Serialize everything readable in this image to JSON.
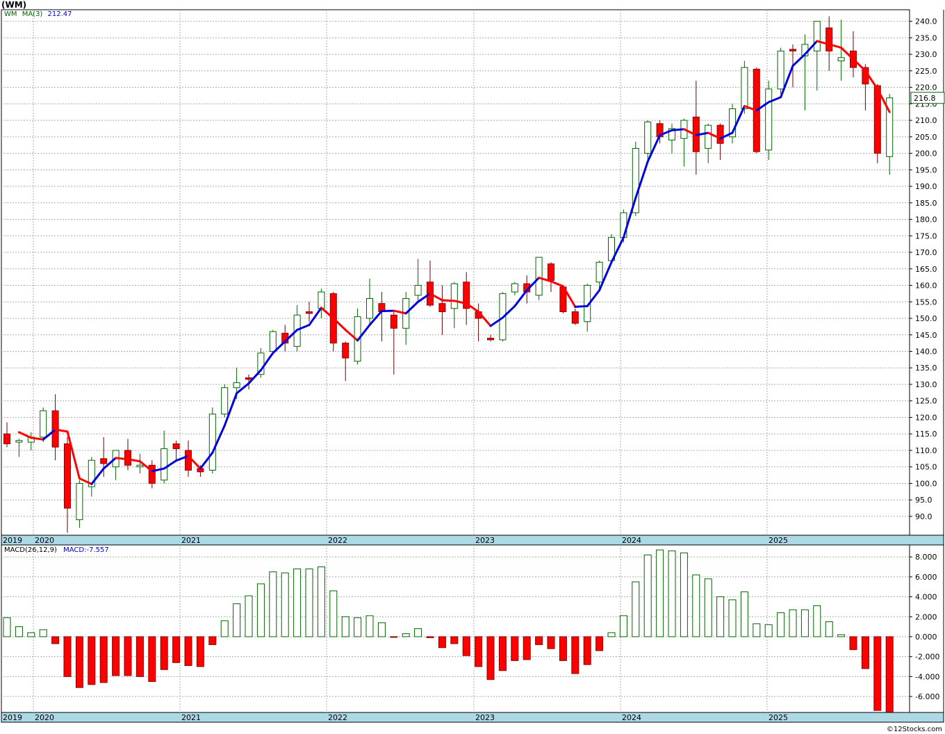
{
  "chart_title": "(WM)",
  "price_legend": {
    "symbol": "WM",
    "ma_label": "MA(3)",
    "ma_value": "212.47"
  },
  "macd_legend": {
    "label": "MACD(26,12,9)",
    "value": "MACD:-7.557"
  },
  "last_price_label": "216.8",
  "copyright": "©12Stocks.com",
  "colors": {
    "up": "#006400",
    "down": "#ff0000",
    "ma_up": "#0000dd",
    "ma_down": "#ff0000",
    "axis_band": "#add8e6"
  },
  "chart_data": [
    {
      "type": "candlestick",
      "title": "",
      "x_ticks": [
        "2019",
        "2020",
        "2021",
        "2022",
        "2023",
        "2024",
        "2025"
      ],
      "y_ticks": [
        90,
        95,
        100,
        105,
        110,
        115,
        120,
        125,
        130,
        135,
        140,
        145,
        150,
        155,
        160,
        165,
        170,
        175,
        180,
        185,
        190,
        195,
        200,
        205,
        210,
        215,
        220,
        225,
        230,
        235,
        240
      ],
      "y_tick_labels": [
        "90.0",
        "95.0",
        "100.0",
        "105.0",
        "110.0",
        "115.0",
        "120.0",
        "125.0",
        "130.0",
        "135.0",
        "140.0",
        "145.0",
        "150.0",
        "155.0",
        "160.0",
        "165.0",
        "170.0",
        "175.0",
        "180.0",
        "185.0",
        "190.0",
        "195.0",
        "200.0",
        "205.0",
        "210.0",
        "215.0",
        "220.0",
        "225.0",
        "230.0",
        "235.0",
        "240.0"
      ],
      "ylim": [
        84.3,
        243.5
      ],
      "candles": [
        {
          "o": 115,
          "h": 118.5,
          "l": 111,
          "c": 112
        },
        {
          "o": 112.5,
          "h": 113.5,
          "l": 108,
          "c": 113
        },
        {
          "o": 112.5,
          "h": 115.5,
          "l": 110,
          "c": 114
        },
        {
          "o": 114,
          "h": 123,
          "l": 112.5,
          "c": 122
        },
        {
          "o": 122,
          "h": 127,
          "l": 107,
          "c": 111
        },
        {
          "o": 112,
          "h": 114,
          "l": 85,
          "c": 92.5
        },
        {
          "o": 89,
          "h": 101,
          "l": 86.5,
          "c": 100
        },
        {
          "o": 99,
          "h": 108,
          "l": 96,
          "c": 107
        },
        {
          "o": 107.5,
          "h": 114,
          "l": 102,
          "c": 106
        },
        {
          "o": 105,
          "h": 110,
          "l": 101,
          "c": 110
        },
        {
          "o": 110,
          "h": 113.5,
          "l": 104,
          "c": 105.5
        },
        {
          "o": 105,
          "h": 109,
          "l": 103,
          "c": 105.5
        },
        {
          "o": 105.5,
          "h": 107,
          "l": 98.5,
          "c": 100
        },
        {
          "o": 101,
          "h": 116,
          "l": 100,
          "c": 110.5
        },
        {
          "o": 112,
          "h": 113,
          "l": 107,
          "c": 110.5
        },
        {
          "o": 110,
          "h": 113,
          "l": 102,
          "c": 104
        },
        {
          "o": 104.5,
          "h": 105.5,
          "l": 102,
          "c": 103.5
        },
        {
          "o": 104,
          "h": 123,
          "l": 103,
          "c": 121
        },
        {
          "o": 121,
          "h": 130,
          "l": 120,
          "c": 129
        },
        {
          "o": 129,
          "h": 135,
          "l": 125.5,
          "c": 130.5
        },
        {
          "o": 132,
          "h": 133,
          "l": 128.5,
          "c": 131.5
        },
        {
          "o": 133,
          "h": 141,
          "l": 132,
          "c": 139.5
        },
        {
          "o": 140,
          "h": 146.5,
          "l": 139,
          "c": 146
        },
        {
          "o": 145.5,
          "h": 148,
          "l": 140,
          "c": 142.5
        },
        {
          "o": 141.5,
          "h": 154,
          "l": 140,
          "c": 151
        },
        {
          "o": 152,
          "h": 155,
          "l": 149,
          "c": 151.5
        },
        {
          "o": 153,
          "h": 159,
          "l": 150,
          "c": 158
        },
        {
          "o": 157.5,
          "h": 158,
          "l": 140,
          "c": 142.5
        },
        {
          "o": 142.5,
          "h": 143,
          "l": 131,
          "c": 138
        },
        {
          "o": 137,
          "h": 153,
          "l": 136,
          "c": 150.5
        },
        {
          "o": 150,
          "h": 162,
          "l": 148,
          "c": 156
        },
        {
          "o": 154.5,
          "h": 158,
          "l": 143,
          "c": 152
        },
        {
          "o": 151,
          "h": 152,
          "l": 133,
          "c": 147
        },
        {
          "o": 147,
          "h": 158,
          "l": 142,
          "c": 156
        },
        {
          "o": 157,
          "h": 168,
          "l": 155,
          "c": 160
        },
        {
          "o": 161,
          "h": 167.5,
          "l": 153.5,
          "c": 154
        },
        {
          "o": 154.5,
          "h": 160,
          "l": 145,
          "c": 152
        },
        {
          "o": 153,
          "h": 161,
          "l": 147,
          "c": 160.5
        },
        {
          "o": 161,
          "h": 164,
          "l": 148,
          "c": 153
        },
        {
          "o": 152,
          "h": 154.5,
          "l": 143,
          "c": 150
        },
        {
          "o": 144,
          "h": 145,
          "l": 143,
          "c": 143.5
        },
        {
          "o": 143.5,
          "h": 158,
          "l": 143,
          "c": 157.5
        },
        {
          "o": 158,
          "h": 161,
          "l": 157,
          "c": 160.5
        },
        {
          "o": 160.5,
          "h": 163,
          "l": 154.5,
          "c": 158
        },
        {
          "o": 157,
          "h": 168.5,
          "l": 155.5,
          "c": 168.5
        },
        {
          "o": 166.5,
          "h": 167,
          "l": 158,
          "c": 161.5
        },
        {
          "o": 159.5,
          "h": 160,
          "l": 151.5,
          "c": 152
        },
        {
          "o": 152,
          "h": 153,
          "l": 148,
          "c": 148.5
        },
        {
          "o": 149,
          "h": 160.5,
          "l": 146,
          "c": 160
        },
        {
          "o": 161,
          "h": 167.5,
          "l": 159,
          "c": 167
        },
        {
          "o": 167.5,
          "h": 175.5,
          "l": 166.5,
          "c": 174.5
        },
        {
          "o": 174.5,
          "h": 183,
          "l": 173,
          "c": 182
        },
        {
          "o": 182,
          "h": 203.5,
          "l": 181,
          "c": 201.5
        },
        {
          "o": 200,
          "h": 210,
          "l": 198,
          "c": 209.5
        },
        {
          "o": 209,
          "h": 210,
          "l": 203,
          "c": 205
        },
        {
          "o": 204,
          "h": 209,
          "l": 200,
          "c": 207.5
        },
        {
          "o": 204.5,
          "h": 210.5,
          "l": 196,
          "c": 210
        },
        {
          "o": 211,
          "h": 222,
          "l": 193.5,
          "c": 200.5
        },
        {
          "o": 201.5,
          "h": 209,
          "l": 197,
          "c": 208.5
        },
        {
          "o": 208.5,
          "h": 209,
          "l": 198,
          "c": 203
        },
        {
          "o": 205,
          "h": 215,
          "l": 203,
          "c": 213.5
        },
        {
          "o": 213.5,
          "h": 228,
          "l": 212,
          "c": 226
        },
        {
          "o": 225.5,
          "h": 226,
          "l": 200,
          "c": 200.5
        },
        {
          "o": 201,
          "h": 222,
          "l": 198,
          "c": 219.5
        },
        {
          "o": 219.5,
          "h": 232,
          "l": 218,
          "c": 231
        },
        {
          "o": 231.5,
          "h": 233,
          "l": 220,
          "c": 231
        },
        {
          "o": 229.5,
          "h": 236,
          "l": 213,
          "c": 233
        },
        {
          "o": 231,
          "h": 240,
          "l": 219,
          "c": 240
        },
        {
          "o": 238,
          "h": 241.5,
          "l": 225,
          "c": 231
        },
        {
          "o": 228,
          "h": 240.5,
          "l": 222,
          "c": 229
        },
        {
          "o": 231,
          "h": 237,
          "l": 223,
          "c": 226
        },
        {
          "o": 226,
          "h": 227,
          "l": 213,
          "c": 221
        },
        {
          "o": 220.5,
          "h": 221,
          "l": 197,
          "c": 200
        },
        {
          "o": 199,
          "h": 218,
          "l": 193.5,
          "c": 216.8
        }
      ],
      "ma_series": {
        "name": "MA(3)",
        "values": [
          115.5,
          113.8,
          113.3,
          116.3,
          115.7,
          101.5,
          99.8,
          104.5,
          107.7,
          107.3,
          106.7,
          103.7,
          104.5,
          106.9,
          108.3,
          104.5,
          109.3,
          117.5,
          127.3,
          130.3,
          134.3,
          139.5,
          143.0,
          146.5,
          148.0,
          153.2,
          150.0,
          146.5,
          143.3,
          148.0,
          152.2,
          152.3,
          151.5,
          155.0,
          157.5,
          155.5,
          155.3,
          154.5,
          152.0,
          147.7,
          150.2,
          153.7,
          158.5,
          162.3,
          161.2,
          159.7,
          153.5,
          153.7,
          158.5,
          167.0,
          174.5,
          186.5,
          197.5,
          205.5,
          207.0,
          207.3,
          205.5,
          206.2,
          204.5,
          206.2,
          214.3,
          213.0,
          215.5,
          217.0,
          226.5,
          230.0,
          234.0,
          233.0,
          232.0,
          228.5,
          225.0,
          219.5,
          212.5
        ]
      },
      "last_price": 216.8
    },
    {
      "type": "bar",
      "title": "",
      "series_name": "MACD(26,12,9)",
      "x_ticks": [
        "2019",
        "2020",
        "2021",
        "2022",
        "2023",
        "2024",
        "2025"
      ],
      "y_ticks": [
        -6,
        -4,
        -2,
        0,
        2,
        4,
        6,
        8
      ],
      "y_tick_labels": [
        "-6.000",
        "-4.000",
        "-2.000",
        "0.000",
        "2.000",
        "4.000",
        "6.000",
        "8.000"
      ],
      "ylim": [
        -7.6,
        9.2
      ],
      "values": [
        1.9,
        1.0,
        0.4,
        0.7,
        -0.7,
        -4.0,
        -5.1,
        -4.8,
        -4.6,
        -3.9,
        -3.9,
        -4.0,
        -4.5,
        -3.3,
        -2.6,
        -2.9,
        -3.0,
        -0.8,
        1.6,
        3.3,
        4.1,
        5.3,
        6.5,
        6.4,
        6.8,
        6.8,
        7.0,
        4.6,
        2.0,
        1.9,
        2.1,
        1.4,
        -0.05,
        0.3,
        0.8,
        -0.1,
        -1.1,
        -0.7,
        -1.9,
        -3.0,
        -4.3,
        -3.4,
        -2.4,
        -2.3,
        -0.8,
        -1.2,
        -2.4,
        -3.7,
        -2.8,
        -1.4,
        0.4,
        2.1,
        5.5,
        8.2,
        8.7,
        8.6,
        8.4,
        6.2,
        5.8,
        4.0,
        3.7,
        4.5,
        1.3,
        1.2,
        2.4,
        2.7,
        2.7,
        3.1,
        1.5,
        0.2,
        -1.3,
        -3.2,
        -7.4,
        -7.557
      ]
    }
  ]
}
